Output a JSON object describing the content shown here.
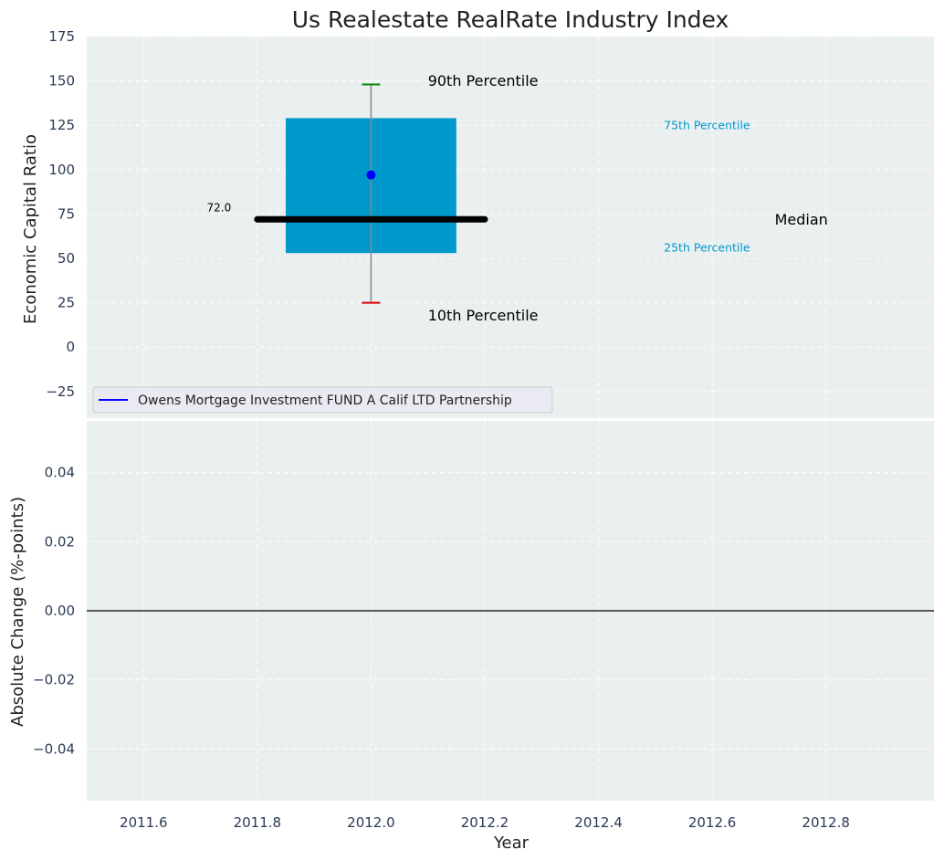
{
  "chart_data": {
    "type": "bar",
    "title": "Us Realestate RealRate Industry Index",
    "panels": [
      {
        "name": "top",
        "ylabel": "Economic Capital Ratio",
        "ylim": [
          -40,
          175
        ],
        "yticks": [
          -25,
          0,
          25,
          50,
          75,
          100,
          125,
          150,
          175
        ],
        "ytick_labels": [
          "−25",
          "0",
          "25",
          "50",
          "75",
          "100",
          "125",
          "150",
          "175"
        ],
        "grid": true,
        "box": {
          "x": 2012.0,
          "x_start": 2011.85,
          "x_end": 2012.15,
          "q25": 53,
          "q75": 129,
          "color": "#0099cc"
        },
        "median": {
          "value": 72.0,
          "x_start": 2011.8,
          "x_end": 2012.2,
          "label": "72.0"
        },
        "whiskers": {
          "x": 2012.0,
          "p10": 25,
          "p90": 148,
          "p10_color": "#dd0000",
          "p90_color": "#008800"
        },
        "company_point": {
          "x": 2012.0,
          "y": 97,
          "color": "#0000ff"
        },
        "annotations": [
          {
            "text": "90th Percentile",
            "x": 2012.1,
            "y": 150,
            "color": "#000000",
            "size": "large"
          },
          {
            "text": "10th Percentile",
            "x": 2012.1,
            "y": 18,
            "color": "#000000",
            "size": "large"
          },
          {
            "text": "75th Percentile",
            "x": 2012.515,
            "y": 125,
            "color": "#0099cc",
            "size": "small"
          },
          {
            "text": "25th Percentile",
            "x": 2012.515,
            "y": 56,
            "color": "#0099cc",
            "size": "small"
          },
          {
            "text": "Median",
            "x": 2012.71,
            "y": 72,
            "color": "#000000",
            "size": "large"
          }
        ],
        "legend": {
          "placement": "lower-left",
          "entries": [
            {
              "label": "Owens Mortgage Investment FUND A Calif LTD Partnership",
              "color": "#0000ff"
            }
          ]
        }
      },
      {
        "name": "bottom",
        "ylabel": "Absolute Change (%-points)",
        "ylim": [
          -0.055,
          0.055
        ],
        "yticks": [
          -0.04,
          -0.02,
          0.0,
          0.02,
          0.04
        ],
        "ytick_labels": [
          "−0.04",
          "−0.02",
          "0.00",
          "0.02",
          "0.04"
        ],
        "zero_line": 0.0,
        "grid": true
      }
    ],
    "xlabel": "Year",
    "xlim": [
      2011.5,
      2012.99
    ],
    "xticks": [
      2011.6,
      2011.8,
      2012.0,
      2012.2,
      2012.4,
      2012.6,
      2012.8
    ],
    "xtick_labels": [
      "2011.6",
      "2011.8",
      "2012.0",
      "2012.2",
      "2012.4",
      "2012.6",
      "2012.8"
    ]
  },
  "colors": {
    "plot_background": "#eaeff0",
    "grid": "#ffffff",
    "tick_text": "#2b3a55",
    "label_text": "#222222"
  }
}
